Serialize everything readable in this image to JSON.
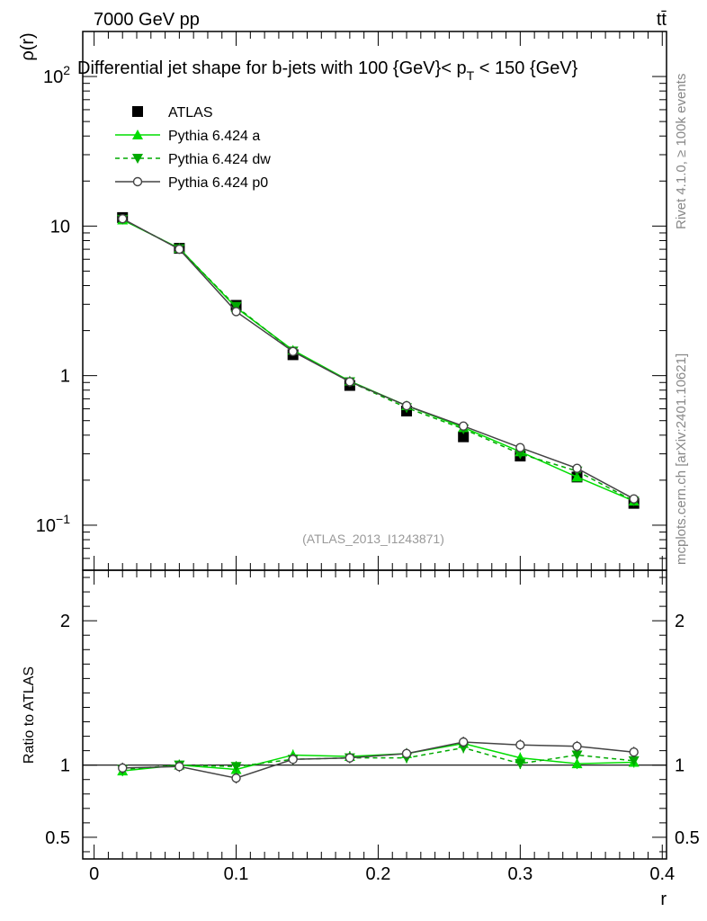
{
  "header": {
    "energy_label": "7000 GeV pp",
    "process_label": "tt̄"
  },
  "side_labels": {
    "rivet": "Rivet 4.1.0, ≥ 100k events",
    "source": "mcplots.cern.ch [arXiv:2401.10621]"
  },
  "chart_data": [
    {
      "type": "line",
      "title": "Differential jet shape for b-jets with 100 {GeV} < p_T < 150 {GeV}",
      "title_parts": {
        "main": "Differential jet shape for b-jets with 100 {GeV}",
        "lt": "< p",
        "sub": "T",
        "tail": " < 150 {GeV}"
      },
      "xlabel": "r",
      "ylabel": "ρ(r)",
      "yscale": "log",
      "xlim": [
        -0.008,
        0.403
      ],
      "ylim": [
        0.05,
        200
      ],
      "ytick_labels": [
        {
          "value": 0.1,
          "base": "10",
          "exp": "−1"
        },
        {
          "value": 1,
          "text": "1"
        },
        {
          "value": 10,
          "text": "10"
        },
        {
          "value": 100,
          "base": "10",
          "exp": "2"
        }
      ],
      "watermark": "(ATLAS_2013_I1243871)",
      "x": [
        0.02,
        0.06,
        0.1,
        0.14,
        0.18,
        0.22,
        0.26,
        0.3,
        0.34,
        0.38
      ],
      "series": [
        {
          "name": "ATLAS",
          "color": "#000000",
          "marker": "square",
          "values": [
            11.4,
            7.1,
            2.95,
            1.38,
            0.86,
            0.58,
            0.39,
            0.29,
            0.21,
            0.14
          ]
        },
        {
          "name": "Pythia 6.424 a",
          "color": "#00dd00",
          "marker": "triangle-up",
          "dash": "",
          "values": [
            11.0,
            7.1,
            2.85,
            1.48,
            0.92,
            0.63,
            0.45,
            0.31,
            0.21,
            0.145
          ]
        },
        {
          "name": "Pythia 6.424 dw",
          "color": "#00aa00",
          "marker": "triangle-down",
          "dash": "5,4",
          "values": [
            11.1,
            7.05,
            2.9,
            1.46,
            0.91,
            0.61,
            0.44,
            0.3,
            0.23,
            0.145
          ]
        },
        {
          "name": "Pythia 6.424 p0",
          "color": "#444444",
          "marker": "circle-open",
          "dash": "",
          "values": [
            11.2,
            7.0,
            2.68,
            1.45,
            0.91,
            0.63,
            0.46,
            0.33,
            0.24,
            0.15
          ]
        }
      ]
    },
    {
      "type": "line",
      "title": "",
      "xlabel": "r",
      "ylabel": "Ratio to ATLAS",
      "xlim": [
        -0.008,
        0.403
      ],
      "ylim": [
        0.35,
        2.35
      ],
      "xticks": [
        0,
        0.1,
        0.2,
        0.3,
        0.4
      ],
      "xtick_labels": [
        "0",
        "0.1",
        "0.2",
        "0.3",
        "0.4"
      ],
      "yticks": [
        0.5,
        1,
        2
      ],
      "ytick_labels": [
        "0.5",
        "1",
        "2"
      ],
      "reference_line": 1,
      "x": [
        0.02,
        0.06,
        0.1,
        0.14,
        0.18,
        0.22,
        0.26,
        0.3,
        0.34,
        0.38
      ],
      "series": [
        {
          "name": "Pythia 6.424 a",
          "color": "#00dd00",
          "marker": "triangle-up",
          "dash": "",
          "values": [
            0.96,
            1.0,
            0.97,
            1.07,
            1.06,
            1.08,
            1.15,
            1.05,
            1.01,
            1.02
          ]
        },
        {
          "name": "Pythia 6.424 dw",
          "color": "#00aa00",
          "marker": "triangle-down",
          "dash": "5,4",
          "values": [
            0.97,
            1.0,
            0.99,
            1.04,
            1.05,
            1.05,
            1.12,
            1.01,
            1.07,
            1.03
          ]
        },
        {
          "name": "Pythia 6.424 p0",
          "color": "#444444",
          "marker": "circle-open",
          "dash": "",
          "values": [
            0.98,
            0.99,
            0.91,
            1.04,
            1.05,
            1.08,
            1.16,
            1.14,
            1.13,
            1.09
          ]
        }
      ]
    }
  ]
}
